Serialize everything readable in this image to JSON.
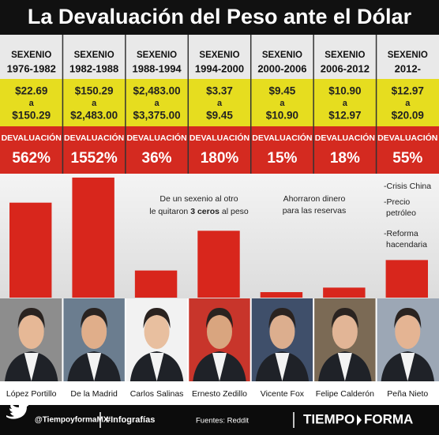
{
  "chart_data": {
    "type": "bar",
    "title": "La Devaluación del Peso ante el Dólar",
    "period_label": "SEXENIO",
    "periods": [
      "1976-1982",
      "1982-1988",
      "1988-1994",
      "1994-2000",
      "2000-2006",
      "2006-2012",
      "2012-"
    ],
    "rates_from": [
      "$22.69",
      "$150.29",
      "$2,483.00",
      "$3.37",
      "$9.45",
      "$10.90",
      "$12.97"
    ],
    "rates_to": [
      "$150.29",
      "$2,483.00",
      "$3,375.00",
      "$9.45",
      "$10.90",
      "$12.97",
      "$20.09"
    ],
    "rate_connector": "a",
    "value_header": "DEVALUACIÓN",
    "categories": [
      "López Portillo",
      "De la Madrid",
      "Carlos Salinas",
      "Ernesto Zedillo",
      "Vicente Fox",
      "Felipe Calderón",
      "Peña Nieto"
    ],
    "values": [
      562,
      1552,
      36,
      180,
      15,
      18,
      55
    ],
    "value_labels": [
      "562%",
      "1552%",
      "36%",
      "180%",
      "15%",
      "18%",
      "55%"
    ],
    "color": "#d8261c",
    "log_scale": true,
    "ylim": [
      12,
      2000
    ],
    "annotations": {
      "salinas": {
        "line1": "De un sexenio al otro",
        "line2": [
          "le quitaron ",
          "3 ceros",
          " al peso"
        ]
      },
      "fox": [
        "Ahorraron dinero",
        "para las reservas"
      ],
      "pena": [
        "-Crisis China",
        "-Precio",
        "petróleo",
        "-Reforma",
        "hacendaria"
      ]
    },
    "footer": {
      "handle": "@TiempoyformaMX",
      "hashtag": "#Infografías",
      "source": "Fuentes: Reddit",
      "brand1": "TIEMPO",
      "brand2": "FORMA"
    }
  }
}
